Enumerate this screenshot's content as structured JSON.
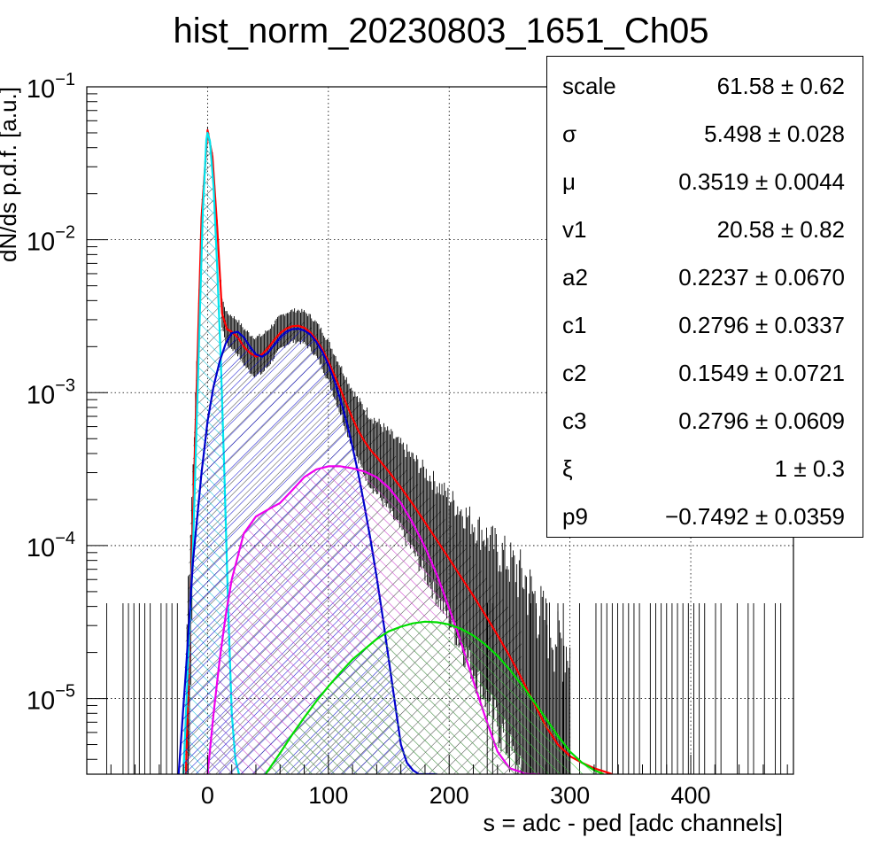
{
  "chart_data": {
    "type": "histogram_with_fit",
    "title": "hist_norm_20230803_1651_Ch05",
    "xlabel": "s = adc - ped [adc channels]",
    "ylabel": "dN/ds p.d.f. [a.u.]",
    "xlim": [
      -100,
      485
    ],
    "ylim": [
      3.2e-06,
      0.1
    ],
    "yscale": "log",
    "grid": true,
    "x_ticks": [
      "0",
      "100",
      "200",
      "300",
      "400"
    ],
    "y_ticks": [
      {
        "value": 1e-05,
        "label": "10",
        "exp": "−5"
      },
      {
        "value": 0.0001,
        "label": "10",
        "exp": "−4"
      },
      {
        "value": 0.001,
        "label": "10",
        "exp": "−3"
      },
      {
        "value": 0.01,
        "label": "10",
        "exp": "−2"
      },
      {
        "value": 0.1,
        "label": "10",
        "exp": "−1"
      }
    ],
    "data_envelope": {
      "x": [
        -20,
        -10,
        -5,
        0,
        3,
        8,
        12,
        15,
        20,
        25,
        30,
        40,
        45,
        50,
        60,
        70,
        75,
        80,
        90,
        100,
        110,
        120,
        130,
        140,
        150,
        160,
        170,
        180,
        190,
        200,
        210,
        220,
        240,
        260
      ],
      "y": [
        1e-05,
        0.001,
        0.02,
        0.05,
        0.035,
        0.006,
        0.003,
        0.0027,
        0.0025,
        0.0022,
        0.0018,
        0.0017,
        0.0018,
        0.0021,
        0.0026,
        0.0029,
        0.003,
        0.0029,
        0.0025,
        0.0019,
        0.0014,
        0.001,
        0.0008,
        0.0006,
        0.00045,
        0.00035,
        0.00028,
        0.00022,
        0.00018,
        0.00014,
        0.00011,
        8e-05,
        5e-05,
        3e-05
      ]
    },
    "series": [
      {
        "color": "#ff0000",
        "hatch": "none",
        "x": [
          -18,
          -10,
          -5,
          0,
          4,
          8,
          12,
          16,
          20,
          25,
          30,
          35,
          40,
          45,
          50,
          55,
          60,
          65,
          70,
          75,
          80,
          85,
          90,
          95,
          100,
          105,
          110,
          115,
          120,
          125,
          130,
          135,
          140,
          145,
          150,
          160,
          170,
          180,
          190,
          200,
          210,
          220,
          230,
          240,
          250,
          260,
          270,
          280,
          290,
          300,
          310,
          320,
          330,
          335
        ],
        "y": [
          3.2e-06,
          0.0006,
          0.014,
          0.052,
          0.035,
          0.012,
          0.0033,
          0.0026,
          0.0025,
          0.0023,
          0.002,
          0.00182,
          0.00172,
          0.00178,
          0.00195,
          0.0022,
          0.00245,
          0.00262,
          0.00272,
          0.00274,
          0.00266,
          0.00248,
          0.00222,
          0.00192,
          0.0016,
          0.0013,
          0.00105,
          0.00084,
          0.00068,
          0.00056,
          0.00048,
          0.00042,
          0.00038,
          0.00034,
          0.000305,
          0.00024,
          0.000186,
          0.000142,
          0.000108,
          8.2e-05,
          6.2e-05,
          4.7e-05,
          3.5e-05,
          2.6e-05,
          1.9e-05,
          1.35e-05,
          9.4e-06,
          6.6e-06,
          5e-06,
          4.2e-06,
          3.8e-06,
          3.5e-06,
          3.3e-06,
          3.2e-06
        ]
      },
      {
        "color": "#00e5ee",
        "hatch": "#00bcd4",
        "x": [
          -20,
          -12,
          -8,
          -4,
          -1,
          0,
          2,
          5,
          8,
          11,
          14,
          17,
          20,
          23,
          26
        ],
        "y": [
          3.2e-06,
          0.0001,
          0.0012,
          0.015,
          0.045,
          0.05,
          0.044,
          0.022,
          0.0065,
          0.0016,
          0.00028,
          4e-05,
          8e-06,
          4e-06,
          3.2e-06
        ]
      },
      {
        "color": "#0000cc",
        "hatch": "#0000cc",
        "x": [
          -24,
          -18,
          -12,
          -5,
          0,
          5,
          10,
          15,
          20,
          25,
          30,
          35,
          40,
          45,
          50,
          55,
          60,
          65,
          70,
          75,
          80,
          85,
          90,
          95,
          100,
          105,
          110,
          115,
          120,
          125,
          130,
          135,
          140,
          145,
          150,
          155,
          160,
          165,
          170,
          175,
          180,
          185,
          190
        ],
        "y": [
          3.2e-06,
          1.5e-05,
          8e-05,
          0.0003,
          0.00065,
          0.0011,
          0.0016,
          0.0021,
          0.00245,
          0.0025,
          0.0023,
          0.002,
          0.00178,
          0.00172,
          0.00182,
          0.00205,
          0.0023,
          0.0025,
          0.0026,
          0.00262,
          0.00255,
          0.0024,
          0.00215,
          0.00185,
          0.00152,
          0.0012,
          0.0009,
          0.00065,
          0.00044,
          0.00029,
          0.00018,
          0.000108,
          6.2e-05,
          3.4e-05,
          1.8e-05,
          9.5e-06,
          5e-06,
          3.8e-06,
          3.4e-06,
          3.2e-06,
          3.2e-06,
          3.2e-06,
          3.2e-06
        ]
      },
      {
        "color": "#ee00ee",
        "hatch": "#cc33cc",
        "x": [
          0,
          5,
          10,
          15,
          20,
          30,
          40,
          50,
          60,
          70,
          80,
          90,
          100,
          110,
          120,
          130,
          140,
          150,
          160,
          170,
          180,
          190,
          200,
          210,
          220,
          230,
          240,
          250,
          260,
          265,
          270,
          275
        ],
        "y": [
          3.2e-06,
          8e-06,
          1.8e-05,
          3.5e-05,
          6e-05,
          0.00012,
          0.000155,
          0.000172,
          0.00019,
          0.00023,
          0.00028,
          0.000315,
          0.00033,
          0.00033,
          0.00032,
          0.000305,
          0.00028,
          0.00024,
          0.00019,
          0.00014,
          9.8e-05,
          6.4e-05,
          3.9e-05,
          2.3e-05,
          1.3e-05,
          7.5e-06,
          4.5e-06,
          3.5e-06,
          3.3e-06,
          3.2e-06,
          3.2e-06,
          3.2e-06
        ]
      },
      {
        "color": "#00dd00",
        "hatch": "#33cc33",
        "x": [
          48,
          60,
          70,
          80,
          90,
          100,
          110,
          120,
          130,
          140,
          150,
          160,
          170,
          180,
          190,
          200,
          210,
          220,
          230,
          240,
          250,
          260,
          270,
          280,
          290,
          300,
          310,
          320,
          328
        ],
        "y": [
          3.2e-06,
          4.4e-06,
          5.8e-06,
          7.5e-06,
          9.6e-06,
          1.2e-05,
          1.48e-05,
          1.8e-05,
          2.1e-05,
          2.45e-05,
          2.75e-05,
          2.95e-05,
          3.1e-05,
          3.18e-05,
          3.15e-05,
          3.05e-05,
          2.85e-05,
          2.58e-05,
          2.25e-05,
          1.9e-05,
          1.55e-05,
          1.23e-05,
          9.6e-06,
          7.4e-06,
          5.7e-06,
          4.5e-06,
          3.8e-06,
          3.4e-06,
          3.2e-06
        ]
      }
    ]
  },
  "stats": [
    {
      "name": "scale",
      "value": "61.58 ± 0.62"
    },
    {
      "name": "σ",
      "value": "5.498 ± 0.028"
    },
    {
      "name": "μ",
      "value": "0.3519 ± 0.0044"
    },
    {
      "name": "v1",
      "value": "20.58 ± 0.82"
    },
    {
      "name": "a2",
      "value": "0.2237 ± 0.0670"
    },
    {
      "name": "c1",
      "value": "0.2796 ± 0.0337"
    },
    {
      "name": "c2",
      "value": "0.1549 ± 0.0721"
    },
    {
      "name": "c3",
      "value": "0.2796 ± 0.0609"
    },
    {
      "name": "ξ",
      "value": "1 ± 0.3"
    },
    {
      "name": "p9",
      "value": "−0.7492 ± 0.0359"
    }
  ]
}
